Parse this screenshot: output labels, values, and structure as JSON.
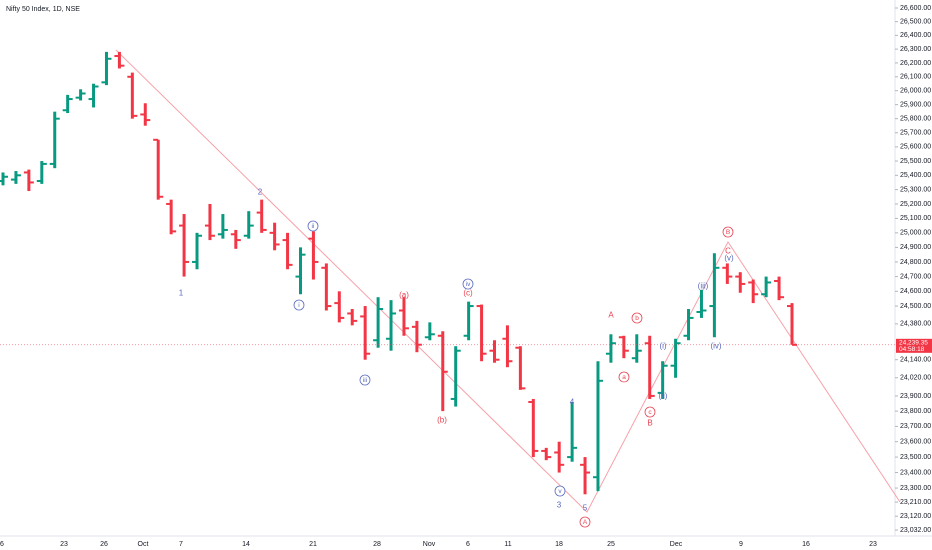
{
  "chart_data": {
    "type": "ohlc",
    "title": "Nifty 50 Index, 1D, NSE",
    "log_scale": true,
    "up_color": "#089981",
    "down_color": "#f23645",
    "open": [
      25360,
      25370,
      25420,
      25360,
      25480,
      25860,
      25950,
      25940,
      26060,
      26250,
      26100,
      25830,
      25650,
      25200,
      25050,
      24800,
      25050,
      24990,
      24990,
      24980,
      25140,
      25000,
      24950,
      24700,
      24960,
      24760,
      24520,
      24450,
      24430,
      24270,
      24280,
      24470,
      24360,
      24290,
      24300,
      23880,
      24300,
      24500,
      24200,
      24280,
      24220,
      23860,
      23540,
      23530,
      23500,
      23450,
      23370,
      24180,
      24290,
      24150,
      24250,
      23920,
      24100,
      24300,
      24460,
      24500,
      24760,
      24700,
      24660,
      24580,
      24670,
      24500
    ],
    "high": [
      25420,
      25430,
      25440,
      25500,
      25850,
      25970,
      26010,
      26050,
      26280,
      26280,
      26130,
      25910,
      25650,
      25230,
      25130,
      25000,
      25200,
      25130,
      25020,
      25150,
      25230,
      25070,
      25000,
      24900,
      25010,
      24790,
      24600,
      24480,
      24500,
      24560,
      24540,
      24560,
      24400,
      24390,
      24330,
      24230,
      24530,
      24510,
      24270,
      24370,
      24230,
      23880,
      23560,
      23600,
      23860,
      23500,
      24130,
      24310,
      24300,
      24310,
      24300,
      24130,
      24280,
      24480,
      24610,
      24860,
      24790,
      24730,
      24680,
      24700,
      24700,
      24520
    ],
    "low": [
      25330,
      25340,
      25290,
      25340,
      25450,
      25840,
      25930,
      25880,
      26040,
      26160,
      25800,
      25750,
      25230,
      24990,
      24700,
      24750,
      24950,
      24960,
      24890,
      24960,
      25000,
      24880,
      24750,
      24580,
      24680,
      24470,
      24390,
      24370,
      24140,
      24220,
      24200,
      24300,
      24190,
      24270,
      23800,
      23830,
      24270,
      24130,
      24120,
      24090,
      23940,
      23500,
      23480,
      23400,
      23470,
      23260,
      23280,
      24120,
      24150,
      24120,
      23880,
      23880,
      24020,
      24270,
      24420,
      24290,
      24650,
      24590,
      24520,
      24560,
      24540,
      24239.35
    ],
    "close": [
      25390,
      25400,
      25350,
      25480,
      25800,
      25940,
      25980,
      26030,
      26230,
      26180,
      25820,
      25790,
      25250,
      25010,
      24800,
      24980,
      24980,
      25020,
      24950,
      25050,
      25020,
      24920,
      24780,
      24850,
      24800,
      24500,
      24420,
      24400,
      24180,
      24480,
      24450,
      24350,
      24240,
      24310,
      24060,
      24200,
      24500,
      24180,
      24140,
      24130,
      23950,
      23540,
      23500,
      23450,
      23560,
      23400,
      24000,
      24250,
      24200,
      24200,
      23900,
      24100,
      24250,
      24420,
      24470,
      24760,
      24700,
      24650,
      24580,
      24660,
      24560,
      24239.35
    ],
    "ylim": [
      23032,
      26600
    ],
    "yticks": [
      {
        "value": 26600,
        "label": "26,600.00"
      },
      {
        "value": 26500,
        "label": "26,500.00"
      },
      {
        "value": 26400,
        "label": "26,400.00"
      },
      {
        "value": 26300,
        "label": "26,300.00"
      },
      {
        "value": 26200,
        "label": "26,200.00"
      },
      {
        "value": 26100,
        "label": "26,100.00"
      },
      {
        "value": 26000,
        "label": "26,000.00"
      },
      {
        "value": 25900,
        "label": "25,900.00"
      },
      {
        "value": 25800,
        "label": "25,800.00"
      },
      {
        "value": 25700,
        "label": "25,700.00"
      },
      {
        "value": 25600,
        "label": "25,600.00"
      },
      {
        "value": 25500,
        "label": "25,500.00"
      },
      {
        "value": 25400,
        "label": "25,400.00"
      },
      {
        "value": 25300,
        "label": "25,300.00"
      },
      {
        "value": 25200,
        "label": "25,200.00"
      },
      {
        "value": 25100,
        "label": "25,100.00"
      },
      {
        "value": 25000,
        "label": "25,000.00"
      },
      {
        "value": 24900,
        "label": "24,900.00"
      },
      {
        "value": 24800,
        "label": "24,800.00"
      },
      {
        "value": 24700,
        "label": "24,700.00"
      },
      {
        "value": 24600,
        "label": "24,600.00"
      },
      {
        "value": 24500,
        "label": "24,500.00"
      },
      {
        "value": 24380,
        "label": "24,380.00"
      },
      {
        "value": 24140,
        "label": "24,140.00"
      },
      {
        "value": 24020,
        "label": "24,020.00"
      },
      {
        "value": 23900,
        "label": "23,900.00"
      },
      {
        "value": 23800,
        "label": "23,800.00"
      },
      {
        "value": 23700,
        "label": "23,700.00"
      },
      {
        "value": 23600,
        "label": "23,600.00"
      },
      {
        "value": 23500,
        "label": "23,500.00"
      },
      {
        "value": 23400,
        "label": "23,400.00"
      },
      {
        "value": 23300,
        "label": "23,300.00"
      },
      {
        "value": 23210,
        "label": "23,210.00"
      },
      {
        "value": 23120,
        "label": "23,120.00"
      },
      {
        "value": 23032,
        "label": "23,032.00"
      }
    ],
    "xtick_labels": [
      "6",
      "23",
      "26",
      "Oct",
      "7",
      "14",
      "21",
      "28",
      "Nov",
      "6",
      "11",
      "18",
      "25",
      "Dec",
      "9",
      "16",
      "23"
    ],
    "last_price": {
      "value": 24239.35,
      "label": "24,239.35"
    },
    "countdown": "04:58:18",
    "annotations": [
      {
        "text": "1",
        "color": "#5b6abf",
        "circled": false
      },
      {
        "text": "2",
        "color": "#5b6abf",
        "circled": false
      },
      {
        "text": "3",
        "color": "#5b6abf",
        "circled": false
      },
      {
        "text": "4",
        "color": "#5b6abf",
        "circled": false
      },
      {
        "text": "5",
        "color": "#5b6abf",
        "circled": false
      },
      {
        "text": "i",
        "color": "#5b6abf",
        "circled": true
      },
      {
        "text": "ii",
        "color": "#5b6abf",
        "circled": true
      },
      {
        "text": "iii",
        "color": "#5b6abf",
        "circled": true
      },
      {
        "text": "iv",
        "color": "#5b6abf",
        "circled": true
      },
      {
        "text": "v",
        "color": "#5b6abf",
        "circled": true
      },
      {
        "text": "(a)",
        "color": "#e84352",
        "circled": false
      },
      {
        "text": "(b)",
        "color": "#e84352",
        "circled": false
      },
      {
        "text": "(c)",
        "color": "#e84352",
        "circled": false
      },
      {
        "text": "A",
        "color": "#e84352",
        "circled": false
      },
      {
        "text": "B",
        "color": "#e84352",
        "circled": false
      },
      {
        "text": "C",
        "color": "#e84352",
        "circled": false
      },
      {
        "text": "a",
        "color": "#e84352",
        "circled": true
      },
      {
        "text": "b",
        "color": "#e84352",
        "circled": true
      },
      {
        "text": "c",
        "color": "#e84352",
        "circled": true
      },
      {
        "text": "A",
        "color": "#e84352",
        "circled": true
      },
      {
        "text": "B",
        "color": "#e84352",
        "circled": true
      },
      {
        "text": "(i)",
        "color": "#5b6abf",
        "circled": false
      },
      {
        "text": "(ii)",
        "color": "#5b6abf",
        "circled": false
      },
      {
        "text": "(iii)",
        "color": "#5b6abf",
        "circled": false
      },
      {
        "text": "(iv)",
        "color": "#5b6abf",
        "circled": false
      },
      {
        "text": "(v)",
        "color": "#5b6abf",
        "circled": false
      }
    ]
  }
}
